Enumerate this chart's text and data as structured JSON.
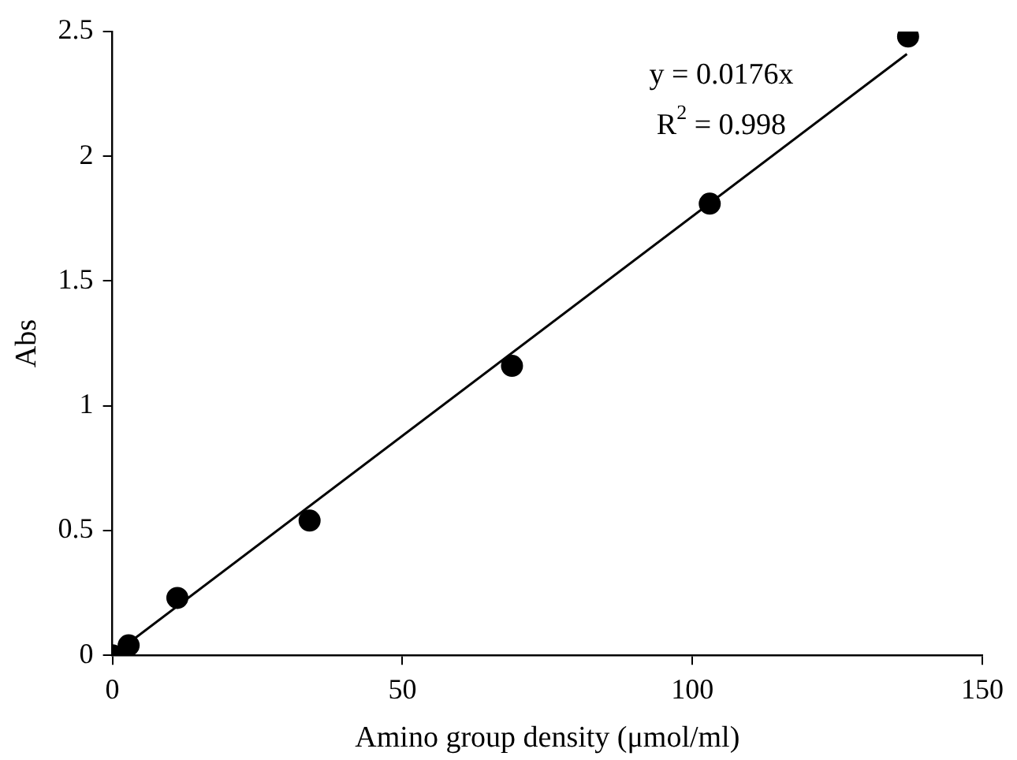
{
  "chart_data": {
    "type": "scatter",
    "xlabel": "Amino group density (μmol/ml)",
    "ylabel": "Abs",
    "xlim": [
      0,
      150
    ],
    "xticks": [
      0,
      50,
      100,
      150
    ],
    "ylim": [
      0,
      2.5
    ],
    "yticks": [
      0,
      0.5,
      1,
      1.5,
      2,
      2.5
    ],
    "grid": false,
    "legend": false,
    "marker": "circle",
    "annotations": [
      "y = 0.0176x",
      "R$^{2}$ = 0.998"
    ],
    "series": [
      {
        "type": "scatter",
        "color": "#000000",
        "x": [
          0,
          2.8,
          11.2,
          34,
          68.9,
          103,
          137.2
        ],
        "values": [
          0,
          0.04,
          0.23,
          0.54,
          1.16,
          1.81,
          2.48
        ]
      },
      {
        "type": "line",
        "color": "#000000",
        "marker": "none",
        "line_style": "solid",
        "x": [
          0,
          137
        ],
        "values": [
          0,
          2.41
        ]
      }
    ]
  }
}
